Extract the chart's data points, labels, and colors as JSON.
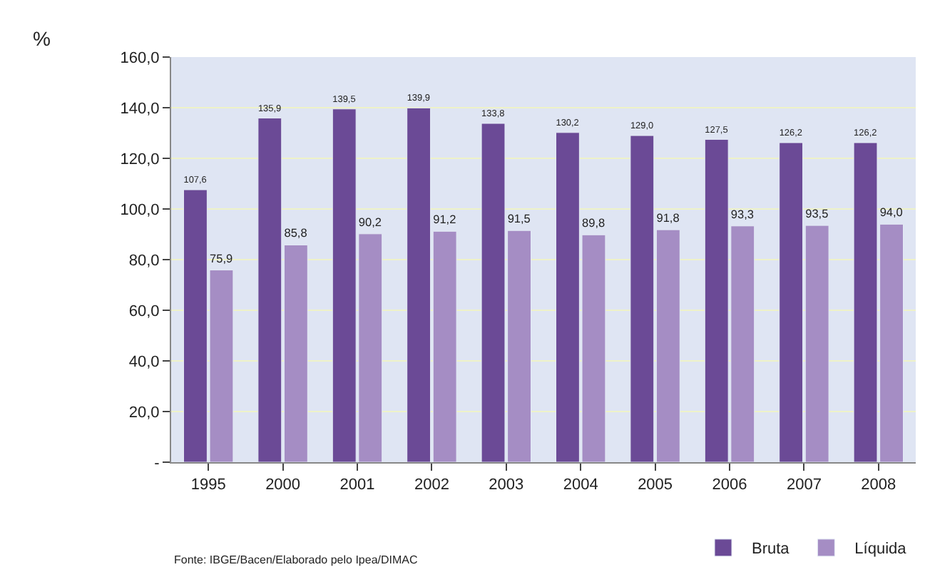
{
  "chart_data": {
    "type": "bar",
    "ylabel": "%",
    "categories": [
      "1995",
      "2000",
      "2001",
      "2002",
      "2003",
      "2004",
      "2005",
      "2006",
      "2007",
      "2008"
    ],
    "series": [
      {
        "name": "Bruta",
        "color": "#6b4a96",
        "values": [
          107.6,
          135.9,
          139.5,
          139.9,
          133.8,
          130.2,
          129.0,
          127.5,
          126.2,
          126.2
        ],
        "value_labels": [
          "107,6",
          "135,9",
          "139,5",
          "139,9",
          "133,8",
          "130,2",
          "129,0",
          "127,5",
          "126,2",
          "126,2"
        ]
      },
      {
        "name": "Líquida",
        "color": "#a58dc4",
        "values": [
          75.9,
          85.8,
          90.2,
          91.2,
          91.5,
          89.8,
          91.8,
          93.3,
          93.5,
          94.0
        ],
        "value_labels": [
          "75,9",
          "85,8",
          "90,2",
          "91,2",
          "91,5",
          "89,8",
          "91,8",
          "93,3",
          "93,5",
          "94,0"
        ]
      }
    ],
    "ylim": [
      0,
      160
    ],
    "yticks": [
      {
        "value": 0,
        "label": "-"
      },
      {
        "value": 20,
        "label": "20,0"
      },
      {
        "value": 40,
        "label": "40,0"
      },
      {
        "value": 60,
        "label": "60,0"
      },
      {
        "value": 80,
        "label": "80,0"
      },
      {
        "value": 100,
        "label": "100,0"
      },
      {
        "value": 120,
        "label": "120,0"
      },
      {
        "value": 140,
        "label": "140,0"
      },
      {
        "value": 160,
        "label": "160,0"
      }
    ],
    "grid": "y",
    "legend": "bottom right",
    "annotations": [
      "Fonte: IBGE/Bacen/Elaborado pelo Ipea/DIMAC"
    ]
  }
}
